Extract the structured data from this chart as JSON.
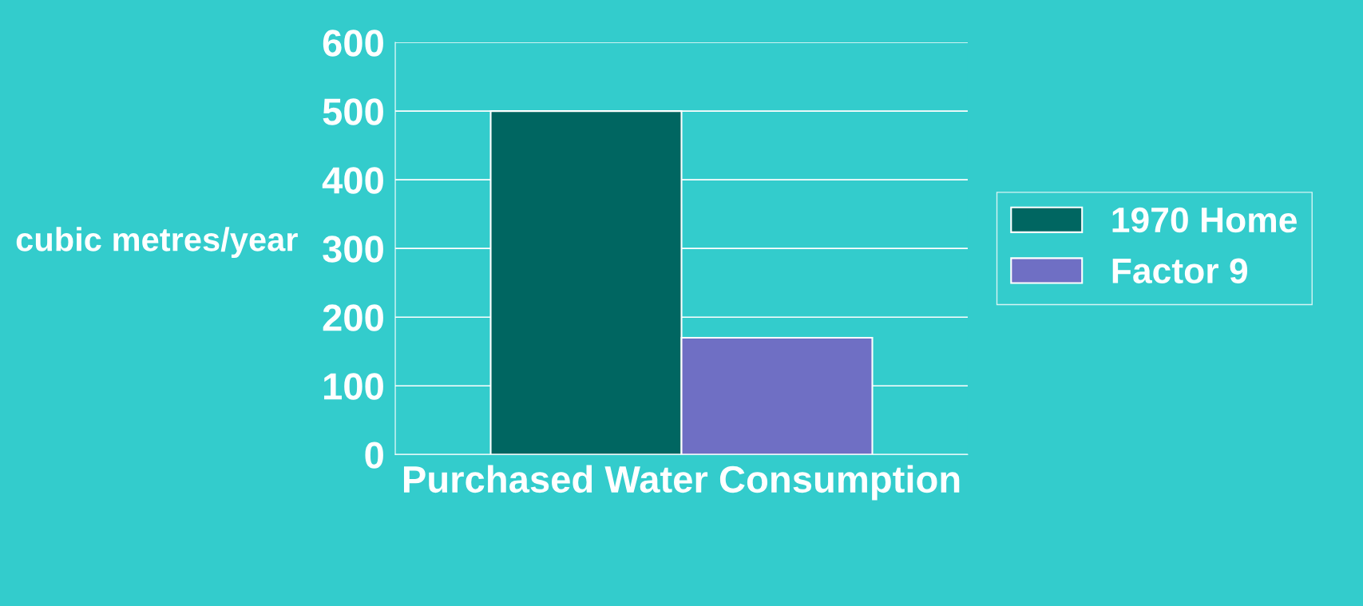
{
  "chart_data": {
    "type": "bar",
    "ylabel": "cubic metres/year",
    "categories": [
      "Purchased Water Consumption"
    ],
    "series": [
      {
        "name": "1970 Home",
        "color": "#006661",
        "values": [
          500
        ]
      },
      {
        "name": "Factor 9",
        "color": "#6f6fc4",
        "values": [
          170
        ]
      }
    ],
    "ylim": [
      0,
      600
    ],
    "yticks": [
      0,
      100,
      200,
      300,
      400,
      500,
      600
    ],
    "grid": "y",
    "legend": "right"
  }
}
